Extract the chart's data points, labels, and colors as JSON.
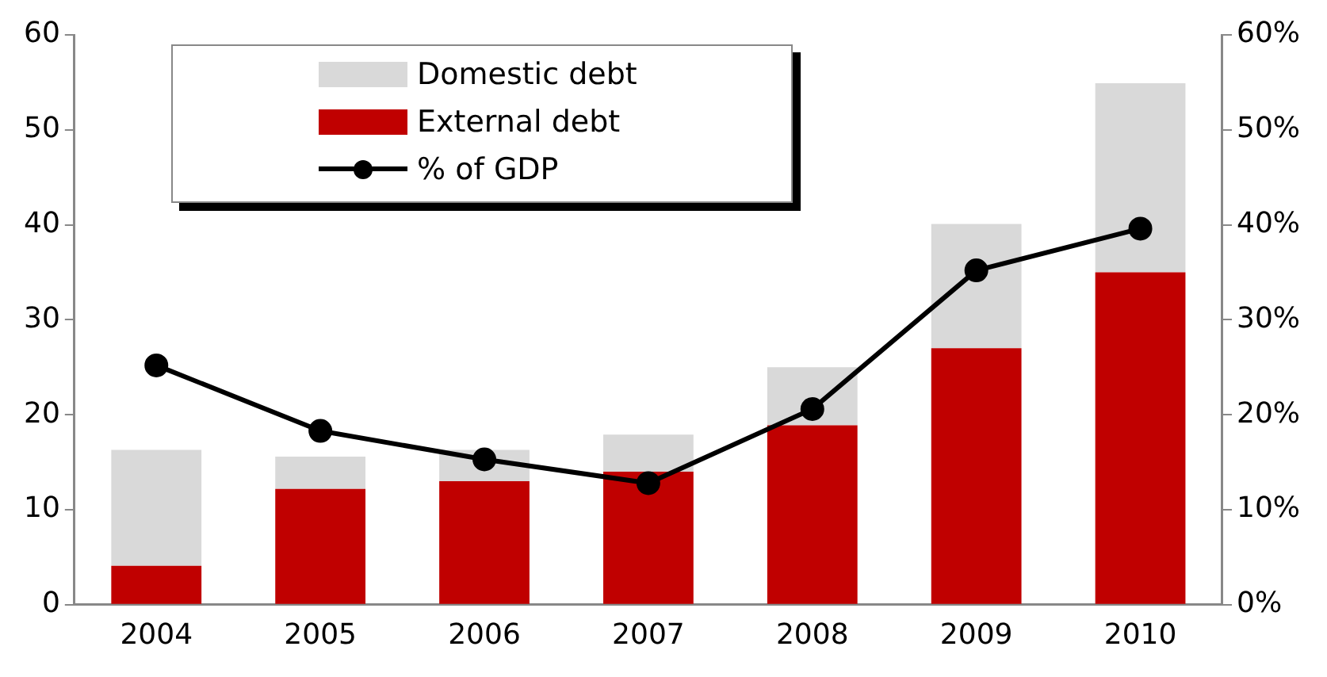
{
  "chart_data": {
    "type": "bar",
    "stacked": true,
    "categories": [
      "2004",
      "2005",
      "2006",
      "2007",
      "2008",
      "2009",
      "2010"
    ],
    "series": [
      {
        "name": "External debt",
        "color": "#c00000",
        "values": [
          4.1,
          12.2,
          13,
          14,
          18.9,
          27,
          35
        ]
      },
      {
        "name": "Domestic debt",
        "color": "#d9d9d9",
        "values": [
          12.2,
          3.4,
          3.3,
          3.9,
          6.1,
          13.1,
          19.9
        ]
      },
      {
        "name": "% of GDP",
        "type": "line",
        "axis": "y2",
        "color": "#000000",
        "values": [
          25.2,
          18.3,
          15.3,
          12.8,
          20.6,
          35.2,
          39.6
        ]
      }
    ],
    "ylim": [
      0,
      60
    ],
    "yticks": [
      0,
      10,
      20,
      30,
      40,
      50,
      60
    ],
    "y2lim": [
      0,
      60
    ],
    "y2ticks": [
      {
        "value": 0,
        "label": "0%"
      },
      {
        "value": 10,
        "label": "10%"
      },
      {
        "value": 20,
        "label": "20%"
      },
      {
        "value": 30,
        "label": "30%"
      },
      {
        "value": 40,
        "label": "40%"
      },
      {
        "value": 50,
        "label": "50%"
      },
      {
        "value": 60,
        "label": "60%"
      }
    ],
    "grid": false,
    "legend": "top left",
    "marker": "circle",
    "line_style": "solid"
  }
}
